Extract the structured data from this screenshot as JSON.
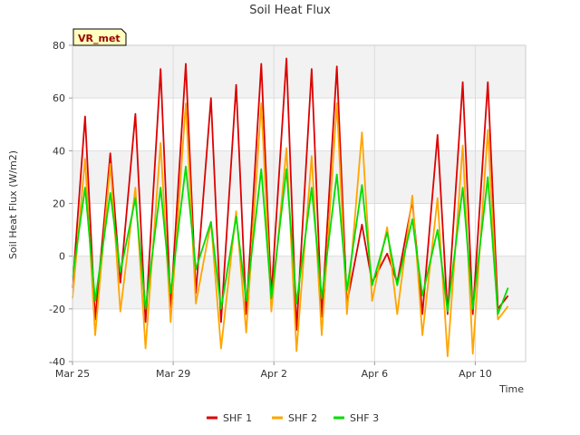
{
  "chart_data": {
    "type": "line",
    "title": "Soil Heat Flux",
    "xlabel": "Time",
    "ylabel": "Soil Heat Flux (W/m2)",
    "ylim": [
      -40,
      80
    ],
    "yticks": [
      -40,
      -20,
      0,
      20,
      40,
      60,
      80
    ],
    "xlim_day": [
      0,
      18
    ],
    "xticks": [
      {
        "label": "Mar 25",
        "day": 0
      },
      {
        "label": "Mar 29",
        "day": 4
      },
      {
        "label": "Apr 2",
        "day": 8
      },
      {
        "label": "Apr 6",
        "day": 12
      },
      {
        "label": "Apr 10",
        "day": 16
      }
    ],
    "badge": "VR_met",
    "x_unit": "days since Mar 25 00:00",
    "series": [
      {
        "name": "SHF 1",
        "color": "#dd0000",
        "days": [
          0,
          0.5,
          0.9,
          1.5,
          1.9,
          2.5,
          2.9,
          3.5,
          3.9,
          4.5,
          4.9,
          5.5,
          5.9,
          6.5,
          6.9,
          7.5,
          7.9,
          8.5,
          8.9,
          9.5,
          9.9,
          10.5,
          10.9,
          11.5,
          11.9,
          12.5,
          12.9,
          13.5,
          13.9,
          14.5,
          14.9,
          15.5,
          15.9,
          16.5,
          16.9,
          17.3
        ],
        "values": [
          -12,
          53,
          -24,
          39,
          -10,
          54,
          -25,
          71,
          -20,
          73,
          -14,
          60,
          -25,
          65,
          -22,
          73,
          -15,
          75,
          -28,
          71,
          -23,
          72,
          -18,
          12,
          -10,
          1,
          -10,
          21,
          -22,
          46,
          -22,
          66,
          -22,
          66,
          -20,
          -15
        ]
      },
      {
        "name": "SHF 2",
        "color": "#ffa500",
        "days": [
          0,
          0.5,
          0.9,
          1.5,
          1.9,
          2.5,
          2.9,
          3.5,
          3.9,
          4.5,
          4.9,
          5.5,
          5.9,
          6.5,
          6.9,
          7.5,
          7.9,
          8.5,
          8.9,
          9.5,
          9.9,
          10.5,
          10.9,
          11.5,
          11.9,
          12.5,
          12.9,
          13.5,
          13.9,
          14.5,
          14.9,
          15.5,
          15.9,
          16.5,
          16.9,
          17.3
        ],
        "values": [
          -16,
          37,
          -30,
          35,
          -21,
          26,
          -35,
          43,
          -25,
          58,
          -18,
          13,
          -35,
          17,
          -29,
          58,
          -21,
          41,
          -36,
          38,
          -30,
          58,
          -22,
          47,
          -17,
          11,
          -22,
          23,
          -30,
          22,
          -38,
          42,
          -37,
          48,
          -24,
          -19
        ]
      },
      {
        "name": "SHF 3",
        "color": "#00dd00",
        "days": [
          0,
          0.5,
          0.9,
          1.5,
          1.9,
          2.5,
          2.9,
          3.5,
          3.9,
          4.5,
          4.9,
          5.5,
          5.9,
          6.5,
          6.9,
          7.5,
          7.9,
          8.5,
          8.9,
          9.5,
          9.9,
          10.5,
          10.9,
          11.5,
          11.9,
          12.5,
          12.9,
          13.5,
          13.9,
          14.5,
          14.9,
          15.5,
          15.9,
          16.5,
          16.9,
          17.3
        ],
        "values": [
          -8,
          26,
          -17,
          24,
          -6,
          22,
          -20,
          26,
          -14,
          34,
          -5,
          13,
          -20,
          15,
          -17,
          33,
          -16,
          33,
          -18,
          26,
          -16,
          31,
          -13,
          27,
          -11,
          9,
          -11,
          14,
          -15,
          10,
          -21,
          26,
          -20,
          30,
          -22,
          -12
        ]
      }
    ]
  }
}
